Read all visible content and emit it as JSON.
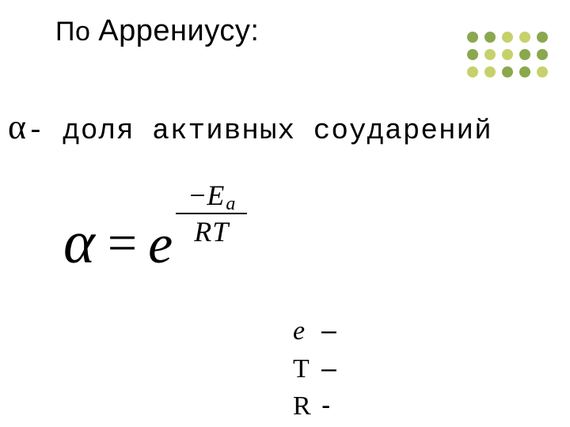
{
  "title": {
    "prefix": "По ",
    "word": "Аррениусу:"
  },
  "alpha_line": {
    "alpha": "α",
    "text": "- доля активных соударений"
  },
  "formula": {
    "alpha": "α",
    "eq": "=",
    "e": "e",
    "num_minus": "−",
    "num_E": "E",
    "num_sub": "a",
    "den_R": "R",
    "den_T": "T"
  },
  "legend": {
    "rows": [
      {
        "sym": "e",
        "italic": true,
        "dash": " –"
      },
      {
        "sym": "T",
        "italic": false,
        "dash": " –"
      },
      {
        "sym": "R",
        "italic": false,
        "dash": " -"
      }
    ]
  },
  "dots": {
    "colors": [
      "#8aa84e",
      "#8aa84e",
      "#c7d16b",
      "#c7d16b",
      "#8aa84e",
      "#8aa84e",
      "#c7d16b",
      "#c7d16b",
      "#8aa84e",
      "#8aa84e",
      "#c7d16b",
      "#c7d16b",
      "#8aa84e",
      "#8aa84e",
      "#c7d16b"
    ]
  },
  "colors": {
    "text": "#000000",
    "background": "#ffffff"
  }
}
